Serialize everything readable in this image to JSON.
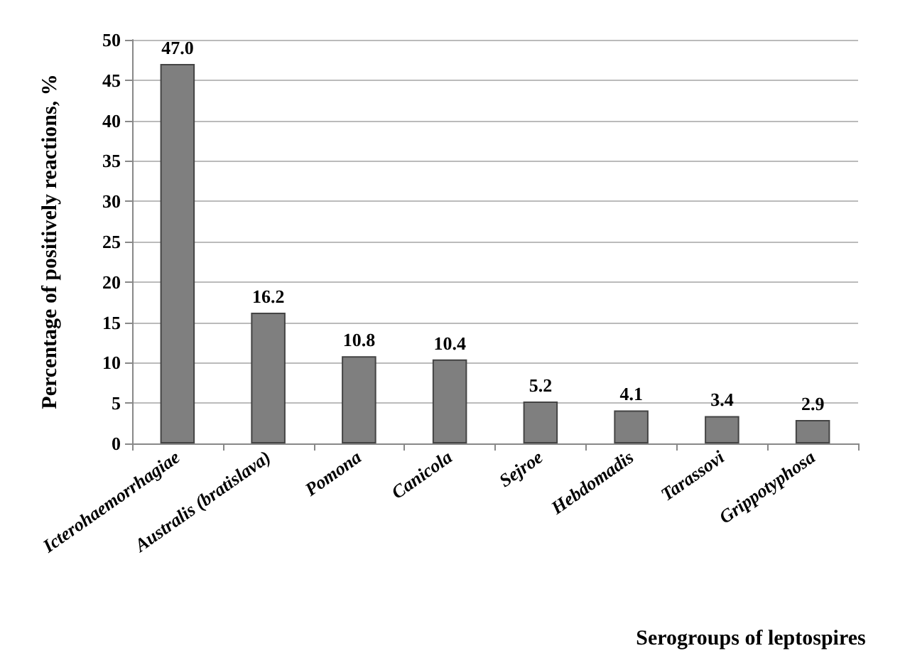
{
  "chart_data": {
    "type": "bar",
    "xlabel": "Serogroups of leptospires",
    "ylabel": "Percentage of positively reactions, %",
    "categories": [
      "Icterohaemorrhagiae",
      "Australis (bratislava)",
      "Pomona",
      "Canicola",
      "Sejroe",
      "Hebdomadis",
      "Tarassovi",
      "Grippotyphosa"
    ],
    "values": [
      47.0,
      16.2,
      10.8,
      10.4,
      5.2,
      4.1,
      3.4,
      2.9
    ],
    "value_labels": [
      "47.0",
      "16.2",
      "10.8",
      "10.4",
      "5.2",
      "4.1",
      "3.4",
      "2.9"
    ],
    "color": "#7f7f7f",
    "ylim": [
      0,
      50
    ],
    "yticks": [
      0,
      5,
      10,
      15,
      20,
      25,
      30,
      35,
      40,
      45,
      50
    ],
    "grid": "y"
  }
}
